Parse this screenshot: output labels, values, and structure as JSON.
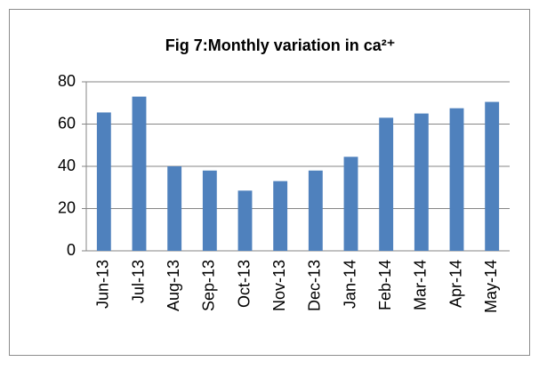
{
  "chart_data": {
    "type": "bar",
    "title": "Fig 7:Monthly variation in ca²⁺",
    "categories": [
      "Jun-13",
      "Jul-13",
      "Aug-13",
      "Sep-13",
      "Oct-13",
      "Nov-13",
      "Dec-13",
      "Jan-14",
      "Feb-14",
      "Mar-14",
      "Apr-14",
      "May-14"
    ],
    "values": [
      65.5,
      73,
      40,
      38,
      28.5,
      33,
      38,
      44.5,
      63,
      65,
      67.5,
      70.5
    ],
    "color": "#4f81bd",
    "ylim": [
      0,
      80
    ],
    "yticks": [
      0,
      20,
      40,
      60,
      80
    ],
    "grid": true
  }
}
